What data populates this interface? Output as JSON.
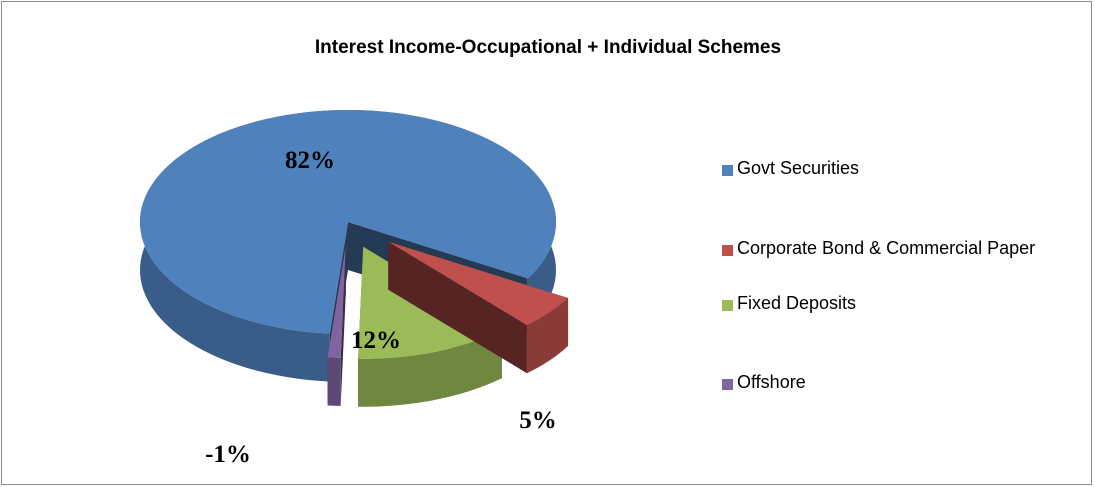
{
  "chart_data": {
    "type": "pie",
    "title": "Interest Income-Occupational + Individual  Schemes",
    "categories": [
      "Govt Securities",
      "Corporate Bond & Commercial Paper",
      "Fixed Deposits",
      "Offshore"
    ],
    "values": [
      82,
      5,
      12,
      -1
    ],
    "value_labels": [
      "82%",
      "5%",
      "12%",
      "-1%"
    ],
    "colors": [
      "#4f81bd",
      "#c0504d",
      "#9bbb59",
      "#8064a2"
    ],
    "legend": "right"
  }
}
